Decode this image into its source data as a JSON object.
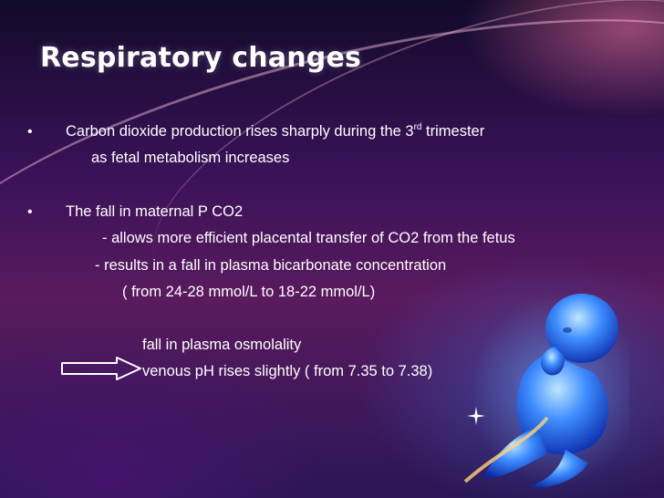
{
  "slide": {
    "title": "Respiratory changes",
    "bullet_char": "•",
    "bullet1": {
      "line1_pre": "Carbon dioxide production rises sharply during the 3",
      "line1_sup": "rd",
      "line1_post": " trimester",
      "line2": "as fetal metabolism increases"
    },
    "bullet2": {
      "line1": "The fall in maternal P CO2",
      "line2": "- allows more efficient placental transfer of CO2 from the fetus",
      "line3": "-  results in a fall in plasma bicarbonate concentration",
      "line4": "( from 24-28 mmol/L to 18-22 mmol/L)"
    },
    "effects": {
      "line1": "fall in plasma osmolality",
      "line2": "venous pH rises slightly ( from 7.35 to 7.38)"
    },
    "icons": {
      "arrow": "right-arrow-icon",
      "illustration": "fetus-illustration",
      "sparkle": "sparkle-icon"
    }
  }
}
